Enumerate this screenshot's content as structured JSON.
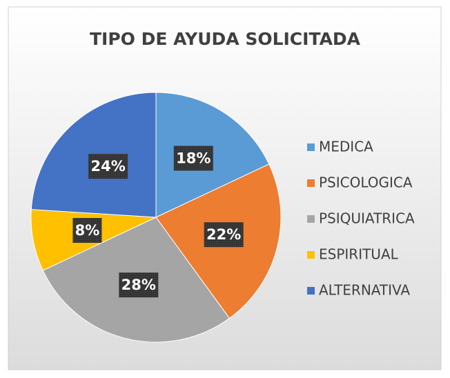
{
  "chart_data": {
    "type": "pie",
    "title": "TIPO DE AYUDA SOLICITADA",
    "categories": [
      "MEDICA",
      "PSICOLOGICA",
      "PSIQUIATRICA",
      "ESPIRITUAL",
      "ALTERNATIVA"
    ],
    "values": [
      18,
      22,
      28,
      8,
      24
    ],
    "value_labels": [
      "18%",
      "22%",
      "28%",
      "8%",
      "24%"
    ],
    "colors": [
      "#5b9bd5",
      "#ed7d31",
      "#a5a5a5",
      "#ffc000",
      "#4472c4"
    ],
    "legend": "right"
  }
}
